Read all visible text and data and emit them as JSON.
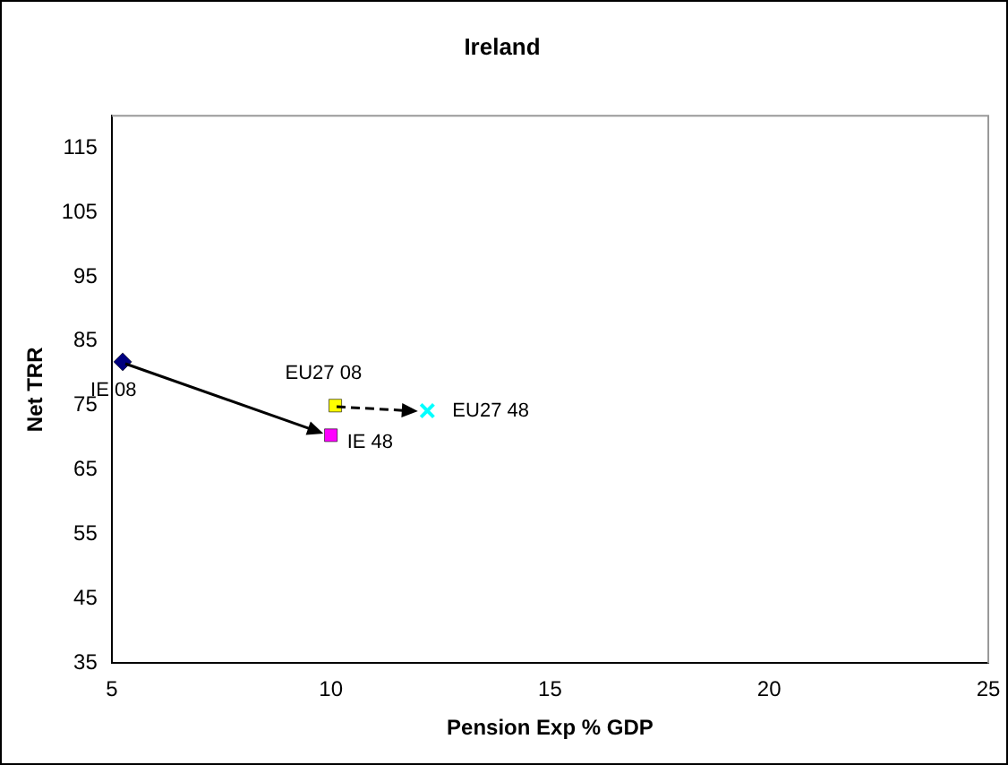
{
  "chart_data": {
    "type": "scatter",
    "title": "Ireland",
    "xlabel": "Pension Exp % GDP",
    "ylabel": "Net TRR",
    "xlim": [
      5,
      25
    ],
    "xticks": [
      5,
      10,
      15,
      20,
      25
    ],
    "ylim": [
      35,
      120
    ],
    "yticks": [
      35,
      45,
      55,
      65,
      75,
      85,
      95,
      105,
      115
    ],
    "grid": false,
    "legend": false,
    "series": [
      {
        "name": "IE 08",
        "x": [
          5.25
        ],
        "values": [
          81.8
        ],
        "color": "#000080",
        "marker": "diamond"
      },
      {
        "name": "IE 48",
        "x": [
          10.0
        ],
        "values": [
          70.4
        ],
        "color": "#ff00ff",
        "marker": "square"
      },
      {
        "name": "EU27 08",
        "x": [
          10.1
        ],
        "values": [
          75.0
        ],
        "color": "#ffff00",
        "marker": "square"
      },
      {
        "name": "EU27 48",
        "x": [
          12.2
        ],
        "values": [
          74.2
        ],
        "color": "#00ffff",
        "marker": "cross"
      }
    ]
  }
}
